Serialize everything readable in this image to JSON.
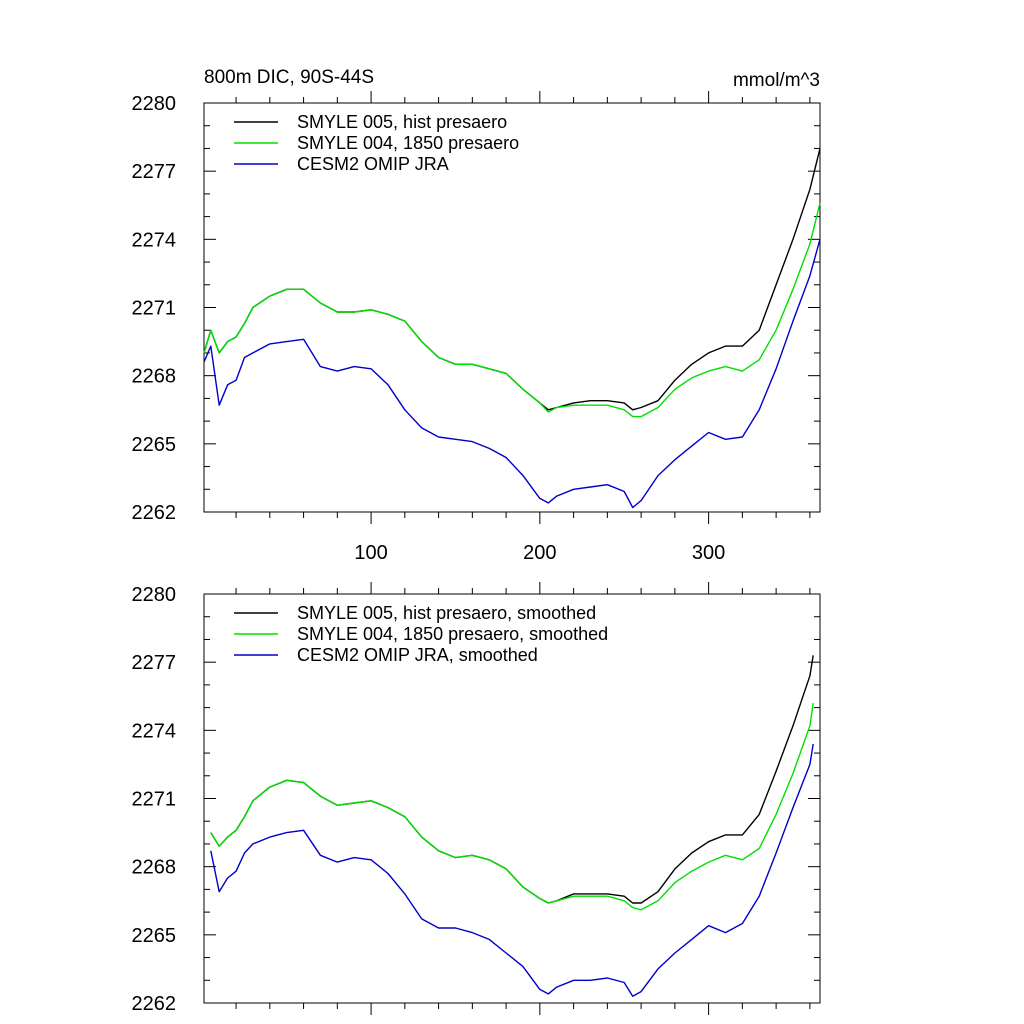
{
  "chart_data": [
    {
      "type": "line",
      "title": "800m DIC, 90S-44S",
      "units": "mmol/m^3",
      "xlim": [
        1,
        366
      ],
      "ylim": [
        2262,
        2280
      ],
      "yticks": [
        2262,
        2265,
        2268,
        2271,
        2274,
        2277,
        2280
      ],
      "xticks": [
        100,
        200,
        300
      ],
      "x": [
        1,
        5,
        10,
        15,
        20,
        25,
        30,
        40,
        50,
        60,
        70,
        80,
        90,
        100,
        110,
        120,
        130,
        140,
        150,
        160,
        170,
        180,
        190,
        200,
        205,
        210,
        220,
        230,
        240,
        250,
        255,
        260,
        270,
        280,
        290,
        300,
        310,
        320,
        330,
        340,
        350,
        360,
        366
      ],
      "series": [
        {
          "name": "SMYLE 005, hist presaero",
          "color": "#000000",
          "values": [
            2269.0,
            2270.0,
            2269.0,
            2269.5,
            2269.7,
            2270.3,
            2271.0,
            2271.5,
            2271.8,
            2271.8,
            2271.2,
            2270.8,
            2270.8,
            2270.9,
            2270.7,
            2270.4,
            2269.5,
            2268.8,
            2268.5,
            2268.5,
            2268.3,
            2268.1,
            2267.4,
            2266.8,
            2266.5,
            2266.6,
            2266.8,
            2266.9,
            2266.9,
            2266.8,
            2266.5,
            2266.6,
            2266.9,
            2267.8,
            2268.5,
            2269.0,
            2269.3,
            2269.3,
            2270.0,
            2272.0,
            2274.0,
            2276.2,
            2278.0
          ]
        },
        {
          "name": "SMYLE 004, 1850 presaero",
          "color": "#00e000",
          "values": [
            2269.0,
            2270.0,
            2269.0,
            2269.5,
            2269.7,
            2270.3,
            2271.0,
            2271.5,
            2271.8,
            2271.8,
            2271.2,
            2270.8,
            2270.8,
            2270.9,
            2270.7,
            2270.4,
            2269.5,
            2268.8,
            2268.5,
            2268.5,
            2268.3,
            2268.1,
            2267.4,
            2266.8,
            2266.4,
            2266.6,
            2266.7,
            2266.7,
            2266.7,
            2266.5,
            2266.2,
            2266.2,
            2266.6,
            2267.4,
            2267.9,
            2268.2,
            2268.4,
            2268.2,
            2268.7,
            2270.0,
            2271.8,
            2273.8,
            2275.6
          ]
        },
        {
          "name": "CESM2 OMIP JRA",
          "color": "#0000cc",
          "values": [
            2268.6,
            2269.3,
            2266.7,
            2267.6,
            2267.8,
            2268.8,
            2269.0,
            2269.4,
            2269.5,
            2269.6,
            2268.4,
            2268.2,
            2268.4,
            2268.3,
            2267.6,
            2266.5,
            2265.7,
            2265.3,
            2265.2,
            2265.1,
            2264.8,
            2264.4,
            2263.6,
            2262.6,
            2262.4,
            2262.7,
            2263.0,
            2263.1,
            2263.2,
            2262.9,
            2262.2,
            2262.5,
            2263.6,
            2264.3,
            2264.9,
            2265.5,
            2265.2,
            2265.3,
            2266.5,
            2268.3,
            2270.4,
            2272.4,
            2274.0
          ]
        }
      ]
    },
    {
      "type": "line",
      "xlim": [
        1,
        366
      ],
      "ylim": [
        2262,
        2280
      ],
      "yticks": [
        2262,
        2265,
        2268,
        2271,
        2274,
        2277,
        2280
      ],
      "xticks": [
        100,
        200,
        300
      ],
      "x": [
        5,
        10,
        15,
        20,
        25,
        30,
        40,
        50,
        60,
        70,
        80,
        90,
        100,
        110,
        120,
        130,
        140,
        150,
        160,
        170,
        180,
        190,
        200,
        205,
        210,
        220,
        230,
        240,
        250,
        255,
        260,
        270,
        280,
        290,
        300,
        310,
        320,
        330,
        340,
        350,
        360,
        362
      ],
      "series": [
        {
          "name": "SMYLE 005, hist presaero, smoothed",
          "color": "#000000",
          "values": [
            2269.5,
            2268.9,
            2269.3,
            2269.6,
            2270.2,
            2270.9,
            2271.5,
            2271.8,
            2271.7,
            2271.1,
            2270.7,
            2270.8,
            2270.9,
            2270.6,
            2270.2,
            2269.3,
            2268.7,
            2268.4,
            2268.5,
            2268.3,
            2267.9,
            2267.1,
            2266.6,
            2266.4,
            2266.5,
            2266.8,
            2266.8,
            2266.8,
            2266.7,
            2266.4,
            2266.4,
            2266.9,
            2267.9,
            2268.6,
            2269.1,
            2269.4,
            2269.4,
            2270.3,
            2272.2,
            2274.2,
            2276.4,
            2277.3
          ]
        },
        {
          "name": "SMYLE 004, 1850 presaero, smoothed",
          "color": "#00e000",
          "values": [
            2269.5,
            2268.9,
            2269.3,
            2269.6,
            2270.2,
            2270.9,
            2271.5,
            2271.8,
            2271.7,
            2271.1,
            2270.7,
            2270.8,
            2270.9,
            2270.6,
            2270.2,
            2269.3,
            2268.7,
            2268.4,
            2268.5,
            2268.3,
            2267.9,
            2267.1,
            2266.6,
            2266.4,
            2266.5,
            2266.7,
            2266.7,
            2266.7,
            2266.5,
            2266.2,
            2266.1,
            2266.5,
            2267.3,
            2267.8,
            2268.2,
            2268.5,
            2268.3,
            2268.8,
            2270.3,
            2272.1,
            2274.2,
            2275.2
          ]
        },
        {
          "name": "CESM2 OMIP JRA, smoothed",
          "color": "#0000cc",
          "values": [
            2268.7,
            2266.9,
            2267.5,
            2267.8,
            2268.6,
            2269.0,
            2269.3,
            2269.5,
            2269.6,
            2268.5,
            2268.2,
            2268.4,
            2268.3,
            2267.7,
            2266.8,
            2265.7,
            2265.3,
            2265.3,
            2265.1,
            2264.8,
            2264.2,
            2263.6,
            2262.6,
            2262.4,
            2262.7,
            2263.0,
            2263.0,
            2263.1,
            2262.9,
            2262.3,
            2262.5,
            2263.5,
            2264.2,
            2264.8,
            2265.4,
            2265.1,
            2265.5,
            2266.7,
            2268.6,
            2270.6,
            2272.5,
            2273.4
          ]
        }
      ]
    }
  ]
}
